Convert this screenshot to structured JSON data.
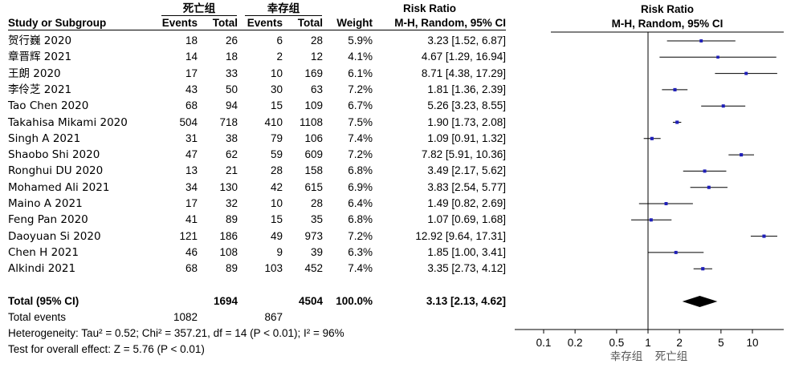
{
  "header": {
    "group1_name": "死亡组",
    "group2_name": "幸存组",
    "study_col": "Study or Subgroup",
    "events_label": "Events",
    "total_label": "Total",
    "weight_label": "Weight",
    "rr_label": "Risk Ratio",
    "rr_method": "M-H, Random, 95% CI"
  },
  "studies": [
    {
      "name": "贺行巍 2020",
      "e1": "18",
      "t1": "26",
      "e2": "6",
      "t2": "28",
      "weight": "5.9%",
      "ci_text": "3.23 [1.52, 6.87]"
    },
    {
      "name": "章晋辉 2021",
      "e1": "14",
      "t1": "18",
      "e2": "2",
      "t2": "12",
      "weight": "4.1%",
      "ci_text": "4.67 [1.29, 16.94]"
    },
    {
      "name": "王朗 2020",
      "e1": "17",
      "t1": "33",
      "e2": "10",
      "t2": "169",
      "weight": "6.1%",
      "ci_text": "8.71 [4.38, 17.29]"
    },
    {
      "name": "李伶芝 2021",
      "e1": "43",
      "t1": "50",
      "e2": "30",
      "t2": "63",
      "weight": "7.2%",
      "ci_text": "1.81 [1.36, 2.39]"
    },
    {
      "name": "Tao Chen 2020",
      "e1": "68",
      "t1": "94",
      "e2": "15",
      "t2": "109",
      "weight": "6.7%",
      "ci_text": "5.26 [3.23, 8.55]"
    },
    {
      "name": "Takahisa Mikami 2020",
      "e1": "504",
      "t1": "718",
      "e2": "410",
      "t2": "1108",
      "weight": "7.5%",
      "ci_text": "1.90 [1.73, 2.08]"
    },
    {
      "name": "Singh A 2021",
      "e1": "31",
      "t1": "38",
      "e2": "79",
      "t2": "106",
      "weight": "7.4%",
      "ci_text": "1.09 [0.91, 1.32]"
    },
    {
      "name": "Shaobo Shi 2020",
      "e1": "47",
      "t1": "62",
      "e2": "59",
      "t2": "609",
      "weight": "7.2%",
      "ci_text": "7.82 [5.91, 10.36]"
    },
    {
      "name": "Ronghui DU 2020",
      "e1": "13",
      "t1": "21",
      "e2": "28",
      "t2": "158",
      "weight": "6.8%",
      "ci_text": "3.49 [2.17, 5.62]"
    },
    {
      "name": "Mohamed Ali 2021",
      "e1": "34",
      "t1": "130",
      "e2": "42",
      "t2": "615",
      "weight": "6.9%",
      "ci_text": "3.83 [2.54, 5.77]"
    },
    {
      "name": "Maino A 2021",
      "e1": "17",
      "t1": "32",
      "e2": "10",
      "t2": "28",
      "weight": "6.4%",
      "ci_text": "1.49 [0.82, 2.69]"
    },
    {
      "name": "Feng Pan 2020",
      "e1": "41",
      "t1": "89",
      "e2": "15",
      "t2": "35",
      "weight": "6.8%",
      "ci_text": "1.07 [0.69, 1.68]"
    },
    {
      "name": "Daoyuan Si 2020",
      "e1": "121",
      "t1": "186",
      "e2": "49",
      "t2": "973",
      "weight": "7.2%",
      "ci_text": "12.92 [9.64, 17.31]"
    },
    {
      "name": "Chen H 2021",
      "e1": "46",
      "t1": "108",
      "e2": "9",
      "t2": "39",
      "weight": "6.3%",
      "ci_text": "1.85 [1.00, 3.41]"
    },
    {
      "name": "Alkindi 2021",
      "e1": "68",
      "t1": "89",
      "e2": "103",
      "t2": "452",
      "weight": "7.4%",
      "ci_text": "3.35 [2.73, 4.12]"
    }
  ],
  "total": {
    "label": "Total (95% CI)",
    "t1": "1694",
    "t2": "4504",
    "weight": "100.0%",
    "ci_text": "3.13 [2.13, 4.62]"
  },
  "total_events": {
    "label": "Total events",
    "e1": "1082",
    "e2": "867"
  },
  "heterogeneity": "Heterogeneity: Tau² = 0.52; Chi² = 357.21, df = 14 (P < 0.01); I² = 96%",
  "overall_effect": "Test for overall effect: Z = 5.76 (P < 0.01)",
  "axis": {
    "ticks": [
      0.1,
      0.2,
      0.5,
      1,
      2,
      5,
      10
    ],
    "tick_labels": [
      "0.1",
      "0.2",
      "0.5",
      "1",
      "2",
      "5",
      "10"
    ],
    "favours_left": "幸存组",
    "favours_right": "死亡组"
  },
  "colors": {
    "square": "#1f1fb8",
    "diamond": "#000000",
    "line": "#000000",
    "label": "#555555"
  },
  "chart_data": {
    "type": "forest",
    "scale": "log",
    "measure": "Risk Ratio",
    "xlim": [
      0.05,
      20
    ],
    "studies": [
      {
        "name": "贺行巍 2020",
        "rr": 3.23,
        "lower": 1.52,
        "upper": 6.87,
        "weight": 5.9
      },
      {
        "name": "章晋辉 2021",
        "rr": 4.67,
        "lower": 1.29,
        "upper": 16.94,
        "weight": 4.1
      },
      {
        "name": "王朗 2020",
        "rr": 8.71,
        "lower": 4.38,
        "upper": 17.29,
        "weight": 6.1
      },
      {
        "name": "李伶芝 2021",
        "rr": 1.81,
        "lower": 1.36,
        "upper": 2.39,
        "weight": 7.2
      },
      {
        "name": "Tao Chen 2020",
        "rr": 5.26,
        "lower": 3.23,
        "upper": 8.55,
        "weight": 6.7
      },
      {
        "name": "Takahisa Mikami 2020",
        "rr": 1.9,
        "lower": 1.73,
        "upper": 2.08,
        "weight": 7.5
      },
      {
        "name": "Singh A 2021",
        "rr": 1.09,
        "lower": 0.91,
        "upper": 1.32,
        "weight": 7.4
      },
      {
        "name": "Shaobo Shi 2020",
        "rr": 7.82,
        "lower": 5.91,
        "upper": 10.36,
        "weight": 7.2
      },
      {
        "name": "Ronghui DU 2020",
        "rr": 3.49,
        "lower": 2.17,
        "upper": 5.62,
        "weight": 6.8
      },
      {
        "name": "Mohamed Ali 2021",
        "rr": 3.83,
        "lower": 2.54,
        "upper": 5.77,
        "weight": 6.9
      },
      {
        "name": "Maino A 2021",
        "rr": 1.49,
        "lower": 0.82,
        "upper": 2.69,
        "weight": 6.4
      },
      {
        "name": "Feng Pan 2020",
        "rr": 1.07,
        "lower": 0.69,
        "upper": 1.68,
        "weight": 6.8
      },
      {
        "name": "Daoyuan Si 2020",
        "rr": 12.92,
        "lower": 9.64,
        "upper": 17.31,
        "weight": 7.2
      },
      {
        "name": "Chen H 2021",
        "rr": 1.85,
        "lower": 1.0,
        "upper": 3.41,
        "weight": 6.3
      },
      {
        "name": "Alkindi 2021",
        "rr": 3.35,
        "lower": 2.73,
        "upper": 4.12,
        "weight": 7.4
      }
    ],
    "pooled": {
      "rr": 3.13,
      "lower": 2.13,
      "upper": 4.62
    }
  }
}
